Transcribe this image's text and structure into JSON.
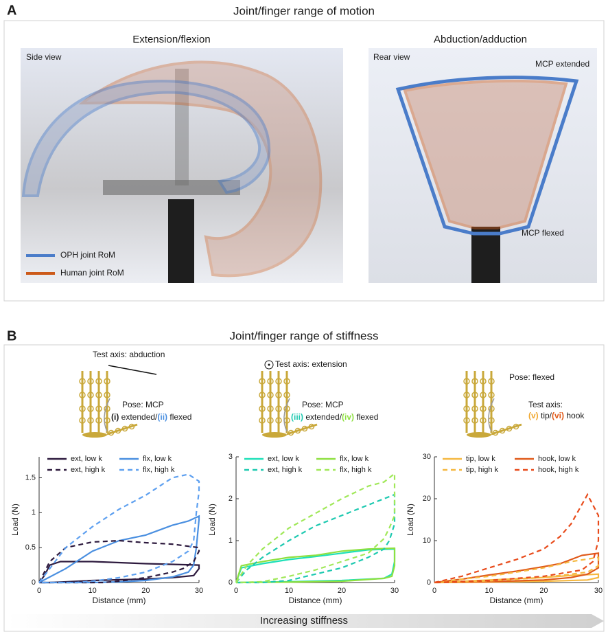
{
  "panel_a": {
    "label": "A",
    "title": "Joint/finger range of motion",
    "left_title": "Extension/flexion",
    "right_title": "Abduction/adduction",
    "side_view": "Side view",
    "rear_view": "Rear view",
    "mcp_extended": "MCP extended",
    "mcp_flexed": "MCP flexed",
    "legend": [
      {
        "name": "OPH joint RoM",
        "color": "#4a7cc9"
      },
      {
        "name": "Human joint RoM",
        "color": "#cc5a1a"
      }
    ]
  },
  "panel_b": {
    "label": "B",
    "title": "Joint/finger range of stiffness",
    "footer": "Increasing stiffness",
    "hands": [
      {
        "test_axis": "Test axis: abduction",
        "pose": "Pose: MCP",
        "pose_line": [
          {
            "text": "(i)",
            "color": "#1a1a1a"
          },
          {
            "text": " extended/",
            "color": "#1a1a1a"
          },
          {
            "text": "(ii)",
            "color": "#4a8fe0"
          },
          {
            "text": " flexed",
            "color": "#1a1a1a"
          }
        ]
      },
      {
        "test_axis": "Test axis: extension",
        "pose": "Pose: MCP",
        "pose_line": [
          {
            "text": "(iii)",
            "color": "#1dc9b0"
          },
          {
            "text": " extended/",
            "color": "#1a1a1a"
          },
          {
            "text": "(iv)",
            "color": "#8ee040"
          },
          {
            "text": " flexed",
            "color": "#1a1a1a"
          }
        ]
      },
      {
        "test_axis": "Test axis:",
        "pose": "Pose: flexed",
        "pose_line": [
          {
            "text": "(v)",
            "color": "#f0a830"
          },
          {
            "text": " tip/",
            "color": "#1a1a1a"
          },
          {
            "text": "(vi)",
            "color": "#e05a1a"
          },
          {
            "text": " hook",
            "color": "#1a1a1a"
          }
        ]
      }
    ]
  },
  "chart_data": [
    {
      "type": "line",
      "xlabel": "Distance (mm)",
      "ylabel": "Load (N)",
      "xlim": [
        0,
        30
      ],
      "xticks": [
        0,
        10,
        20,
        30
      ],
      "ylim": [
        0,
        1.8
      ],
      "yticks": [
        0,
        0.5,
        1,
        1.5
      ],
      "series": [
        {
          "name": "ext, low k",
          "color": "#2d1a3e",
          "dash": false,
          "x": [
            0,
            1,
            2,
            4,
            10,
            20,
            30,
            30,
            29,
            25,
            20,
            10,
            5,
            2,
            0
          ],
          "values": [
            0,
            0.1,
            0.25,
            0.3,
            0.3,
            0.27,
            0.25,
            0.2,
            0.1,
            0.07,
            0.05,
            0.03,
            0.01,
            0,
            0
          ]
        },
        {
          "name": "flx, low k",
          "color": "#4a8fe0",
          "dash": false,
          "x": [
            0,
            5,
            10,
            15,
            20,
            25,
            28,
            30,
            30,
            29.5,
            29,
            28,
            25,
            20,
            15,
            10,
            0
          ],
          "values": [
            0,
            0.2,
            0.45,
            0.6,
            0.68,
            0.82,
            0.88,
            0.95,
            0.9,
            0.5,
            0.25,
            0.15,
            0.08,
            0.03,
            0.01,
            0,
            0
          ]
        },
        {
          "name": "ext, high k",
          "color": "#2d1a3e",
          "dash": true,
          "x": [
            0,
            2,
            5,
            10,
            15,
            20,
            25,
            30,
            30,
            29,
            27,
            25,
            20,
            15,
            12,
            0
          ],
          "values": [
            0,
            0.3,
            0.5,
            0.58,
            0.6,
            0.57,
            0.55,
            0.5,
            0.45,
            0.3,
            0.2,
            0.15,
            0.07,
            0.02,
            0,
            0
          ]
        },
        {
          "name": "flx, high k",
          "color": "#5ea0f0",
          "dash": true,
          "x": [
            0,
            3,
            5,
            10,
            15,
            20,
            25,
            28,
            30,
            30,
            29.5,
            29,
            28,
            25,
            20,
            15,
            10,
            7,
            0
          ],
          "values": [
            0,
            0.3,
            0.5,
            0.8,
            1.05,
            1.25,
            1.5,
            1.55,
            1.45,
            1.3,
            1,
            0.6,
            0.45,
            0.3,
            0.15,
            0.07,
            0.02,
            0,
            0
          ]
        }
      ]
    },
    {
      "type": "line",
      "xlabel": "Distance (mm)",
      "ylabel": "Load (N)",
      "xlim": [
        0,
        30
      ],
      "xticks": [
        0,
        10,
        20,
        30
      ],
      "ylim": [
        0,
        3
      ],
      "yticks": [
        0,
        1,
        2,
        3
      ],
      "series": [
        {
          "name": "ext, low k",
          "color": "#1de0b8",
          "dash": false,
          "x": [
            0,
            1,
            5,
            10,
            15,
            20,
            25,
            30,
            30,
            29.5,
            28,
            20,
            10,
            0
          ],
          "values": [
            0,
            0.35,
            0.45,
            0.55,
            0.62,
            0.7,
            0.78,
            0.8,
            0.5,
            0.2,
            0.1,
            0.05,
            0.02,
            0
          ]
        },
        {
          "name": "flx, low k",
          "color": "#8ee040",
          "dash": false,
          "x": [
            0,
            1,
            5,
            10,
            15,
            20,
            25,
            30,
            30,
            29.5,
            28,
            20,
            10,
            0
          ],
          "values": [
            0,
            0.4,
            0.5,
            0.6,
            0.65,
            0.75,
            0.8,
            0.82,
            0.4,
            0.15,
            0.1,
            0.03,
            0.01,
            0
          ]
        },
        {
          "name": "ext, high k",
          "color": "#1dc9b0",
          "dash": true,
          "x": [
            0,
            2,
            5,
            10,
            15,
            20,
            25,
            30,
            30,
            29,
            28,
            25,
            20,
            15,
            10,
            5,
            0
          ],
          "values": [
            0,
            0.3,
            0.6,
            1,
            1.35,
            1.6,
            1.85,
            2.1,
            1.4,
            1,
            0.8,
            0.6,
            0.35,
            0.2,
            0.05,
            0,
            0
          ]
        },
        {
          "name": "flx, high k",
          "color": "#a0e858",
          "dash": true,
          "x": [
            0,
            2,
            5,
            10,
            15,
            20,
            25,
            28,
            30,
            30,
            29,
            28,
            25,
            20,
            15,
            10,
            5,
            0
          ],
          "values": [
            0,
            0.4,
            0.8,
            1.3,
            1.65,
            2,
            2.3,
            2.4,
            2.6,
            1.6,
            1.3,
            1.05,
            0.7,
            0.5,
            0.3,
            0.15,
            0.02,
            0
          ]
        }
      ]
    },
    {
      "type": "line",
      "xlabel": "Distance (mm)",
      "ylabel": "Load (N)",
      "xlim": [
        0,
        30
      ],
      "xticks": [
        0,
        10,
        20,
        30
      ],
      "ylim": [
        0,
        30
      ],
      "yticks": [
        0,
        10,
        20,
        30
      ],
      "series": [
        {
          "name": "tip, low k",
          "color": "#f5b840",
          "dash": false,
          "x": [
            0,
            5,
            10,
            15,
            20,
            25,
            30,
            30,
            28,
            20,
            10,
            0
          ],
          "values": [
            0,
            0.3,
            0.6,
            0.9,
            1.2,
            1.7,
            2,
            1.2,
            0.6,
            0.3,
            0.1,
            0
          ]
        },
        {
          "name": "hook, low k",
          "color": "#e05a1a",
          "dash": false,
          "x": [
            0,
            5,
            10,
            15,
            20,
            23,
            25,
            27,
            30,
            30,
            28,
            25,
            20,
            10,
            0
          ],
          "values": [
            0,
            0.8,
            1.8,
            2.7,
            3.8,
            4.5,
            5.5,
            6.5,
            7,
            3.5,
            2,
            1.2,
            0.6,
            0.2,
            0
          ]
        },
        {
          "name": "tip, high k",
          "color": "#f5b840",
          "dash": true,
          "x": [
            0,
            5,
            10,
            15,
            20,
            25,
            30,
            30,
            28,
            20,
            10,
            0
          ],
          "values": [
            0,
            0.8,
            1.5,
            2.5,
            3.5,
            5,
            6,
            4,
            2.5,
            1.2,
            0.4,
            0
          ]
        },
        {
          "name": "hook, high k",
          "color": "#e84a1a",
          "dash": true,
          "x": [
            0,
            5,
            10,
            15,
            20,
            23,
            25,
            28,
            30,
            30,
            29,
            27,
            20,
            10,
            0
          ],
          "values": [
            0,
            1.5,
            3.5,
            5.5,
            8,
            11,
            14,
            21,
            16,
            10,
            5,
            3,
            1.5,
            0.5,
            0
          ]
        }
      ]
    }
  ]
}
